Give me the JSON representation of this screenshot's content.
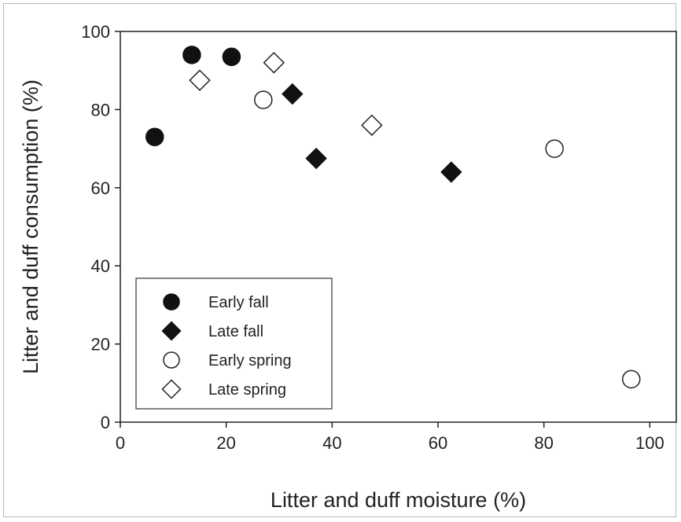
{
  "chart_data": {
    "type": "scatter",
    "title": "",
    "xlabel": "Litter and duff moisture (%)",
    "ylabel": "Litter and duff consumption (%)",
    "xlim": [
      0,
      105
    ],
    "ylim": [
      0,
      100
    ],
    "xticks": [
      0,
      20,
      40,
      60,
      80,
      100
    ],
    "yticks": [
      0,
      20,
      40,
      60,
      80,
      100
    ],
    "grid": false,
    "legend_position": "bottom-left",
    "series": [
      {
        "name": "Early fall",
        "marker": "circle",
        "filled": true,
        "x": [
          6.5,
          13.5,
          21
        ],
        "y": [
          73,
          94,
          93.5
        ]
      },
      {
        "name": "Late fall",
        "marker": "diamond",
        "filled": true,
        "x": [
          32.5,
          37,
          62.5
        ],
        "y": [
          84,
          67.5,
          64
        ]
      },
      {
        "name": "Early spring",
        "marker": "circle",
        "filled": false,
        "x": [
          27,
          82,
          96.5
        ],
        "y": [
          82.5,
          70,
          11
        ]
      },
      {
        "name": "Late spring",
        "marker": "diamond",
        "filled": false,
        "x": [
          15,
          29,
          47.5
        ],
        "y": [
          87.5,
          92,
          76
        ]
      }
    ],
    "colors": {
      "fill": "#111111",
      "stroke": "#222222",
      "hollow": "#ffffff"
    }
  }
}
